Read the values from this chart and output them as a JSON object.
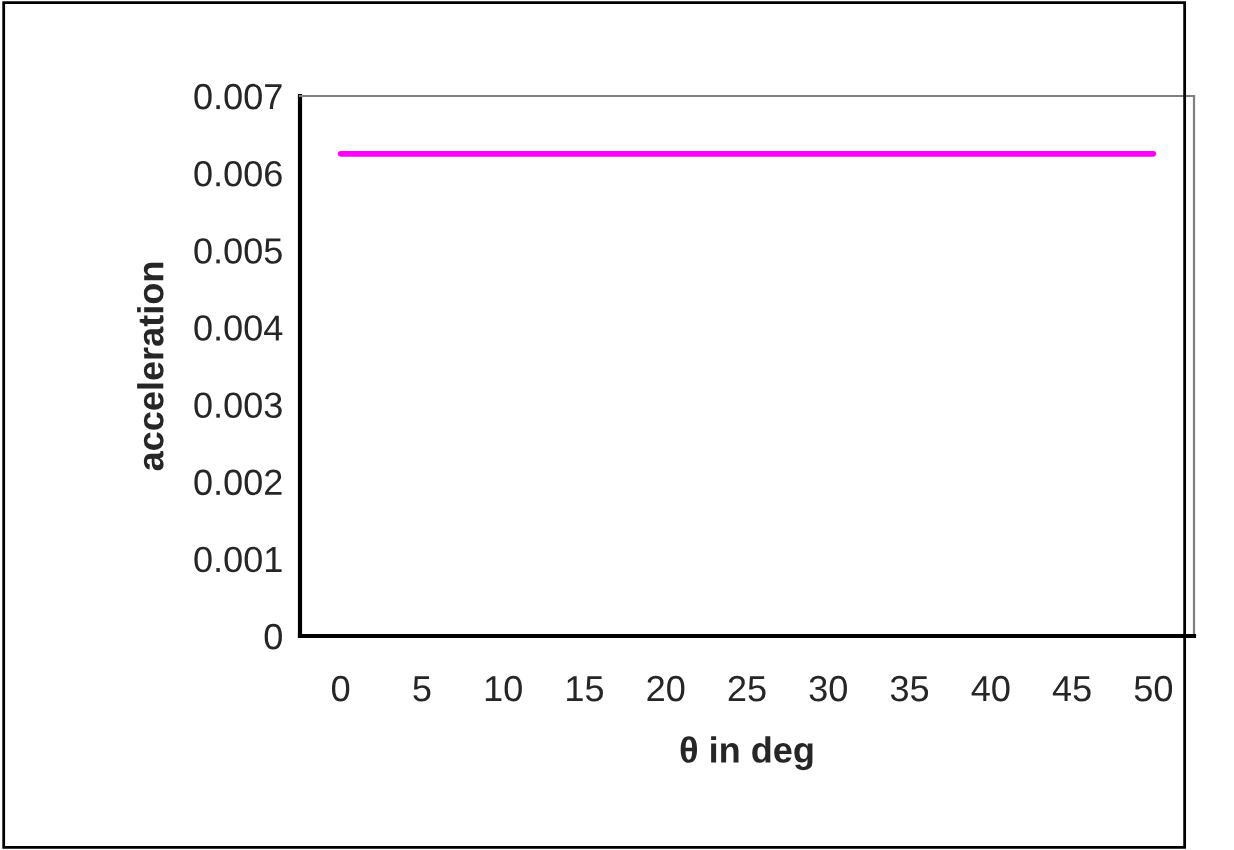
{
  "chart_data": {
    "type": "line",
    "xlabel": "θ in deg",
    "ylabel": "acceleration",
    "categories": [
      "0",
      "5",
      "10",
      "15",
      "20",
      "25",
      "30",
      "35",
      "40",
      "45",
      "50"
    ],
    "series": [
      {
        "color": "#ff00ff",
        "values": [
          0.00625,
          0.00625,
          0.00625,
          0.00625,
          0.00625,
          0.00625,
          0.00625,
          0.00625,
          0.00625,
          0.00625,
          0.00625
        ]
      }
    ],
    "ylim": [
      0,
      0.007
    ],
    "yticks": [
      0,
      0.001,
      0.002,
      0.003,
      0.004,
      0.005,
      0.006,
      0.007
    ],
    "grid": false,
    "legend": false,
    "marker": "none",
    "line_style": "solid"
  }
}
